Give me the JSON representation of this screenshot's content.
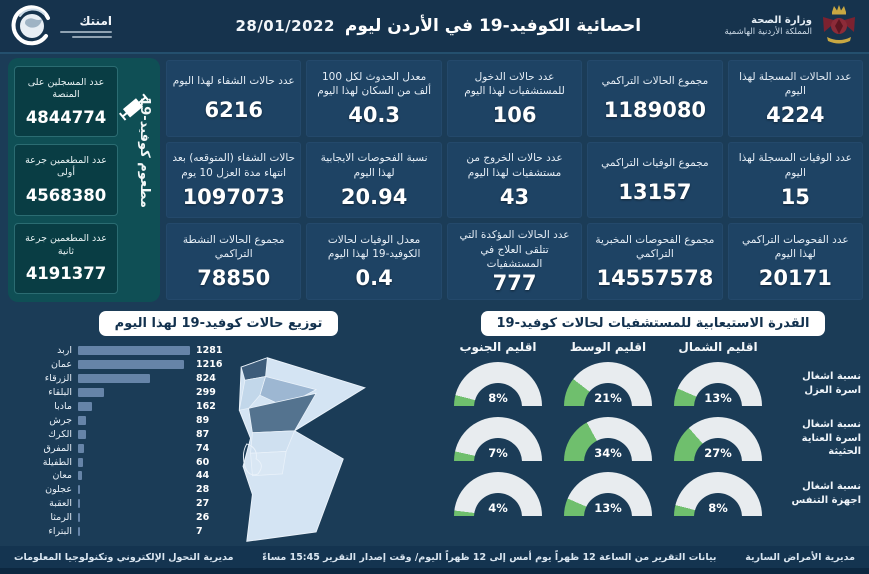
{
  "header": {
    "title": "احصائية الكوفيد-19 في الأردن ليوم",
    "date": "28/01/2022",
    "ministry_line1": "وزارة الصحة",
    "ministry_line2": "المملكة الأردنية الهاشمية",
    "logo_text": "امنتك"
  },
  "sidebar": {
    "vertical_label": "مطعوم كوفيد-19",
    "cards": [
      {
        "label": "عدد المسجلين على المنصة",
        "value": "4844774"
      },
      {
        "label": "عدد المطعمين جرعة أولى",
        "value": "4568380"
      },
      {
        "label": "عدد المطعمين جرعة ثانية",
        "value": "4191377"
      }
    ]
  },
  "stats_grid": {
    "columns": [
      {
        "cards": [
          {
            "label": "عدد الحالات المسجلة لهذا اليوم",
            "value": "4224"
          },
          {
            "label": "عدد الوفيات المسجلة لهذا اليوم",
            "value": "15"
          },
          {
            "label": "عدد الفحوصات التراكمي لهذا اليوم",
            "value": "20171"
          }
        ]
      },
      {
        "cards": [
          {
            "label": "مجموع الحالات التراكمي",
            "value": "1189080"
          },
          {
            "label": "مجموع الوفيات التراكمي",
            "value": "13157"
          },
          {
            "label": "مجموع الفحوصات المخبرية التراكمي",
            "value": "14557578"
          }
        ]
      },
      {
        "cards": [
          {
            "label": "عدد حالات الدخول للمستشفيات لهذا اليوم",
            "value": "106"
          },
          {
            "label": "عدد حالات الخروج من مستشفيات لهذا اليوم",
            "value": "43"
          },
          {
            "label": "عدد الحالات المؤكدة التي تتلقى العلاج في المستشفيات",
            "value": "777"
          }
        ]
      },
      {
        "cards": [
          {
            "label": "معدل الحدوث لكل 100 ألف من السكان لهذا اليوم",
            "value": "40.3"
          },
          {
            "label": "نسبة الفحوصات الايجابية لهذا اليوم",
            "value": "20.94"
          },
          {
            "label": "معدل الوفيات لحالات الكوفيد-19 لهذا اليوم",
            "value": "0.4"
          }
        ]
      },
      {
        "cards": [
          {
            "label": "عدد حالات الشفاء لهذا اليوم",
            "value": "6216"
          },
          {
            "label": "حالات الشفاء (المتوقعه) بعد انتهاء مدة العزل 10 يوم",
            "value": "1097073"
          },
          {
            "label": "مجموع الحالات النشطة التراكمي",
            "value": "78850"
          }
        ]
      }
    ]
  },
  "chart_data": [
    {
      "type": "bar",
      "title": "توزيع حالات كوفيد-19 لهذا اليوم",
      "orientation": "horizontal",
      "categories": [
        "اربد",
        "عمان",
        "الزرقاء",
        "البلقاء",
        "مادبا",
        "جرش",
        "الكرك",
        "المفرق",
        "الطفيلة",
        "معان",
        "عجلون",
        "العقبة",
        "الرمثا",
        "البتراء"
      ],
      "values": [
        1281,
        1216,
        824,
        299,
        162,
        89,
        87,
        74,
        60,
        44,
        28,
        27,
        26,
        7
      ],
      "bar_color": "#6684a8",
      "value_labels": true,
      "xlim": [
        0,
        1300
      ]
    },
    {
      "type": "gauge-grid",
      "title": "القدرة الاستيعابية للمستشفيات لحالات كوفيد-19",
      "columns": [
        "اقليم الشمال",
        "اقليم الوسط",
        "اقليم الجنوب"
      ],
      "rows": [
        "نسبة اشغال اسرة العزل",
        "نسبة اشغال اسرة العناية الحثيثة",
        "نسبة اشغال اجهزة التنفس"
      ],
      "values_pct": [
        [
          13,
          21,
          8
        ],
        [
          27,
          34,
          7
        ],
        [
          8,
          13,
          4
        ]
      ],
      "fill_color": "#6fbf6d",
      "track_color": "#e8ecef"
    }
  ],
  "footer": {
    "right": "مديرية الأمراض السارية",
    "center": "بيانات التقرير من الساعة 12 ظهراً يوم أمس إلى 12 ظهراً اليوم/ وقت إصدار التقرير 15:45 مساءً",
    "left": "مديرية التحول الإلكتروني وتكنولوجيا المعلومات"
  },
  "colors": {
    "background": "#1b3c57",
    "header": "#16334d",
    "card": "#1e4364",
    "sidebar_panel": "#0f4f55",
    "sidebar_card": "#093d44",
    "bar": "#6684a8",
    "gauge_fill": "#6fbf6d",
    "gauge_track": "#e8ecef",
    "crest_red": "#7c2230",
    "crest_gold": "#c9a842"
  }
}
